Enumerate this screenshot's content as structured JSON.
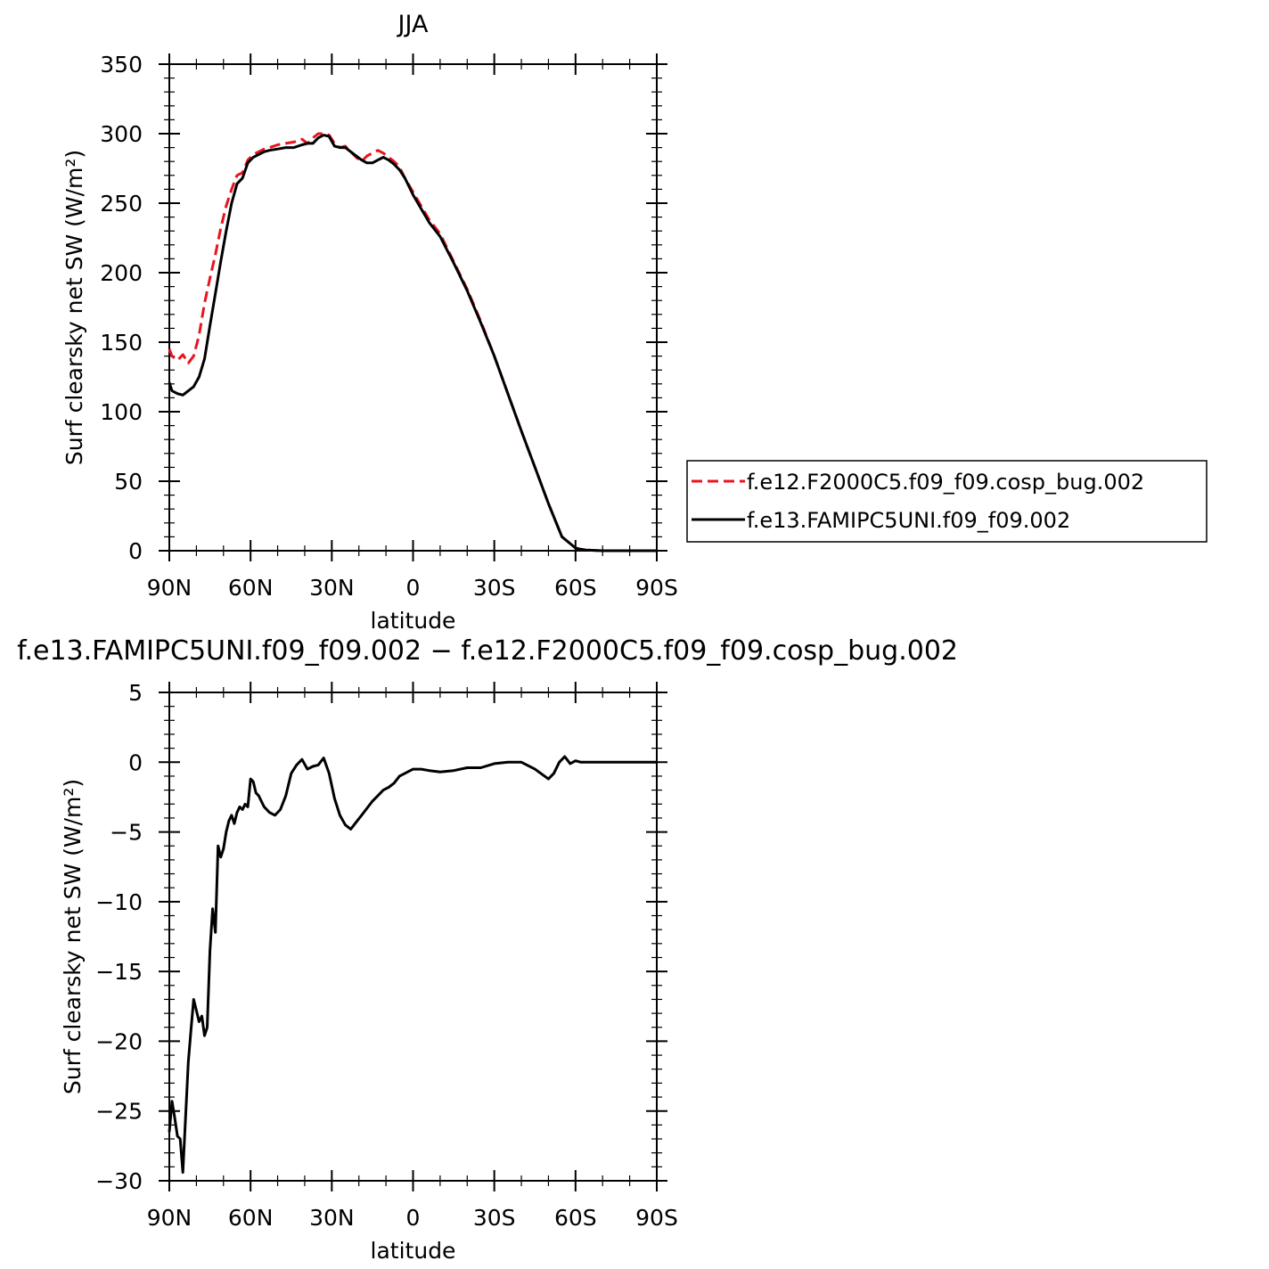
{
  "chart_data": [
    {
      "type": "line",
      "title": "JJA",
      "xlabel": "latitude",
      "ylabel": "Surf clearsky net SW (W/m²)",
      "xlim": [
        90,
        -90
      ],
      "ylim": [
        0,
        350
      ],
      "x_ticks": [
        90,
        60,
        30,
        0,
        -30,
        -60,
        -90
      ],
      "x_tick_labels": [
        "90N",
        "60N",
        "30N",
        "0",
        "30S",
        "60S",
        "90S"
      ],
      "y_ticks": [
        0,
        50,
        100,
        150,
        200,
        250,
        300,
        350
      ],
      "y_tick_labels": [
        "0",
        "50",
        "100",
        "150",
        "200",
        "250",
        "300",
        "350"
      ],
      "legend_position": "right",
      "series": [
        {
          "name": "f.e12.F2000C5.f09_f09.cosp_bug.002",
          "color": "#e8141e",
          "dash": "dashed",
          "x": [
            90,
            89,
            87,
            85,
            83,
            81,
            79,
            77,
            75,
            73,
            71,
            69,
            67,
            65,
            63,
            61,
            59,
            57,
            55,
            53,
            50,
            47,
            44,
            41,
            39,
            37,
            35,
            33,
            31,
            29,
            27,
            25,
            23,
            21,
            19,
            17,
            15,
            13,
            11,
            9,
            7,
            5,
            3,
            0,
            -3,
            -6,
            -10,
            -15,
            -20,
            -25,
            -30,
            -35,
            -40,
            -45,
            -50,
            -55,
            -60,
            -62,
            -64,
            -66,
            -68,
            -70,
            -75,
            -80,
            -85,
            -90
          ],
          "y": [
            145,
            140,
            137,
            141,
            135,
            140,
            155,
            178,
            196,
            213,
            232,
            248,
            260,
            270,
            272,
            281,
            285,
            287,
            289,
            290,
            292,
            293,
            294,
            296,
            293,
            297,
            300,
            300,
            299,
            293,
            290,
            291,
            287,
            283,
            280,
            284,
            286,
            288,
            286,
            283,
            280,
            276,
            268,
            258,
            248,
            238,
            228,
            208,
            188,
            165,
            140,
            113,
            86,
            60,
            34,
            10,
            2,
            1,
            0.5,
            0.3,
            0.1,
            0,
            0,
            0,
            0,
            0
          ]
        },
        {
          "name": "f.e13.FAMIPC5UNI.f09_f09.002",
          "color": "#000000",
          "dash": "solid",
          "x": [
            90,
            89,
            87,
            85,
            83,
            81,
            79,
            77,
            75,
            73,
            71,
            69,
            67,
            65,
            63,
            61,
            59,
            57,
            55,
            53,
            50,
            47,
            44,
            41,
            39,
            37,
            35,
            33,
            31,
            29,
            27,
            25,
            23,
            21,
            19,
            17,
            15,
            13,
            11,
            9,
            7,
            5,
            3,
            0,
            -3,
            -6,
            -10,
            -15,
            -20,
            -25,
            -30,
            -35,
            -40,
            -45,
            -50,
            -55,
            -60,
            -62,
            -64,
            -66,
            -68,
            -70,
            -75,
            -80,
            -85,
            -90
          ],
          "y": [
            121,
            115,
            113,
            112,
            115,
            118,
            125,
            138,
            162,
            185,
            208,
            230,
            250,
            264,
            268,
            279,
            283,
            285,
            287,
            288,
            289,
            290,
            290,
            292,
            293,
            293,
            297,
            299,
            298,
            291,
            290,
            290,
            287,
            284,
            281,
            279,
            279,
            281,
            283,
            281,
            278,
            274,
            268,
            256,
            246,
            236,
            226,
            207,
            187,
            164,
            140,
            113,
            86,
            60,
            34,
            10,
            2,
            1,
            0.5,
            0.3,
            0.1,
            0,
            0,
            0,
            0,
            0
          ]
        }
      ]
    },
    {
      "type": "line",
      "title": "f.e13.FAMIPC5UNI.f09_f09.002 − f.e12.F2000C5.f09_f09.cosp_bug.002",
      "xlabel": "latitude",
      "ylabel": "Surf clearsky net SW (W/m²)",
      "xlim": [
        90,
        -90
      ],
      "ylim": [
        -30,
        5
      ],
      "x_ticks": [
        90,
        60,
        30,
        0,
        -30,
        -60,
        -90
      ],
      "x_tick_labels": [
        "90N",
        "60N",
        "30N",
        "0",
        "30S",
        "60S",
        "90S"
      ],
      "y_ticks": [
        5,
        0,
        -5,
        -10,
        -15,
        -20,
        -25,
        -30
      ],
      "y_tick_labels": [
        "5",
        "0",
        "−5",
        "−10",
        "−15",
        "−20",
        "−25",
        "−30"
      ],
      "series": [
        {
          "color": "#000000",
          "dash": "solid",
          "x": [
            90,
            89,
            88,
            87,
            86,
            85,
            84,
            83,
            82,
            81,
            80,
            79,
            78,
            77,
            76,
            75,
            74,
            73,
            72,
            71,
            70,
            69,
            68,
            67,
            66,
            65,
            64,
            63,
            62,
            61,
            60,
            59,
            58,
            57,
            56,
            55,
            53,
            51,
            49,
            47,
            45,
            43,
            41,
            39,
            37,
            35,
            33,
            31,
            29,
            27,
            25,
            23,
            21,
            19,
            17,
            15,
            13,
            11,
            9,
            7,
            5,
            3,
            0,
            -3,
            -6,
            -10,
            -15,
            -20,
            -25,
            -30,
            -35,
            -40,
            -45,
            -50,
            -52,
            -54,
            -56,
            -58,
            -60,
            -62,
            -64,
            -66,
            -68,
            -70,
            -75,
            -80,
            -85,
            -90
          ],
          "y": [
            -26.5,
            -24.3,
            -25.5,
            -26.8,
            -27.0,
            -29.4,
            -25.5,
            -21.5,
            -19.2,
            -17.0,
            -17.8,
            -18.6,
            -18.2,
            -19.6,
            -19.0,
            -13.5,
            -10.5,
            -12.2,
            -6.0,
            -6.8,
            -6.2,
            -5.0,
            -4.2,
            -3.8,
            -4.4,
            -3.6,
            -3.2,
            -3.4,
            -3.0,
            -3.2,
            -1.2,
            -1.4,
            -2.2,
            -2.4,
            -2.8,
            -3.2,
            -3.6,
            -3.8,
            -3.4,
            -2.4,
            -0.8,
            -0.2,
            0.2,
            -0.5,
            -0.3,
            -0.2,
            0.3,
            -0.8,
            -2.6,
            -3.8,
            -4.5,
            -4.8,
            -4.3,
            -3.8,
            -3.3,
            -2.8,
            -2.4,
            -2.0,
            -1.8,
            -1.5,
            -1.0,
            -0.8,
            -0.5,
            -0.5,
            -0.6,
            -0.7,
            -0.6,
            -0.4,
            -0.4,
            -0.1,
            0.0,
            0.0,
            -0.5,
            -1.2,
            -0.8,
            0.0,
            0.4,
            -0.1,
            0.1,
            0.0,
            0.0,
            0.0,
            0.0,
            0.0,
            0.0,
            0.0,
            0.0,
            0.0
          ]
        }
      ]
    }
  ]
}
